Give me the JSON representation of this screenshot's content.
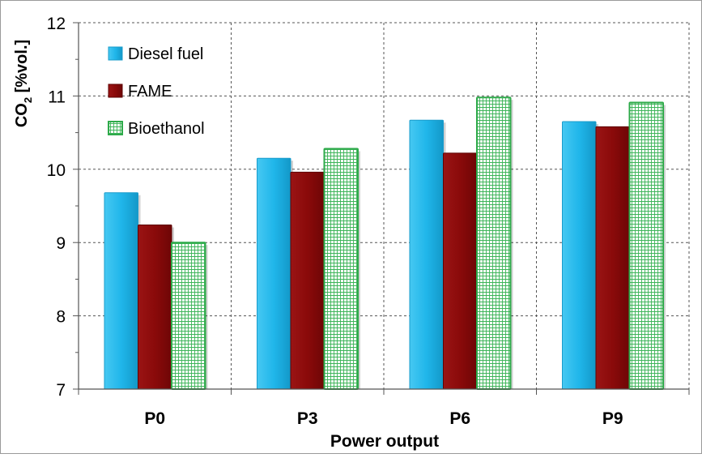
{
  "chart_data": {
    "type": "bar",
    "title": "",
    "xlabel": "Power output",
    "ylabel_main": "CO",
    "ylabel_sub": "2",
    "ylabel_rest": " [%vol.]",
    "categories": [
      "P0",
      "P3",
      "P6",
      "P9"
    ],
    "ylim": [
      7,
      12
    ],
    "yticks": [
      "7",
      "8",
      "9",
      "10",
      "11",
      "12"
    ],
    "grid": true,
    "legend_position": "top-left",
    "series": [
      {
        "name": "Diesel fuel",
        "values": [
          9.68,
          10.15,
          10.67,
          10.65
        ],
        "color": "#1EB4E8",
        "pattern": "solid"
      },
      {
        "name": "FAME",
        "values": [
          9.24,
          9.96,
          10.22,
          10.58
        ],
        "color": "#8B0A0A",
        "pattern": "solid"
      },
      {
        "name": "Bioethanol",
        "values": [
          9.0,
          10.28,
          10.98,
          10.91
        ],
        "color": "#2EAA4A",
        "pattern": "grid"
      }
    ]
  }
}
